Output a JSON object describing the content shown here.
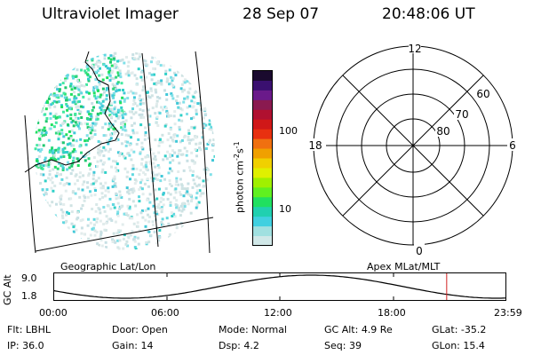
{
  "header": {
    "instrument": "Ultraviolet Imager",
    "date": "28 Sep 07",
    "time": "20:48:06 UT"
  },
  "colorbar": {
    "unit": "photon cm",
    "unit_exp1": "-2",
    "unit_mid": "s",
    "unit_exp2": "-1",
    "ticks": [
      "100",
      "10"
    ],
    "colors": [
      "#1a0a2e",
      "#3a1070",
      "#6a1a8a",
      "#8a1a50",
      "#b01030",
      "#d01818",
      "#e83010",
      "#f07010",
      "#f0a000",
      "#f0d000",
      "#e0f000",
      "#a0f000",
      "#60f020",
      "#20e060",
      "#20d0b0",
      "#40d0e0",
      "#a0e0e0",
      "#d0e8e8"
    ]
  },
  "polar": {
    "labels_mlt": [
      "12",
      "18",
      "6",
      "0"
    ],
    "labels_lat": [
      "60",
      "70",
      "80"
    ]
  },
  "map_labels": {
    "geo": "Geographic Lat/Lon",
    "apex": "Apex MLat/MLT"
  },
  "timeline": {
    "ylabel": "GC Alt",
    "y_ticks": [
      "9.0",
      "1.8"
    ],
    "x_ticks": [
      "00:00",
      "06:00",
      "12:00",
      "18:00",
      "23:59"
    ],
    "current_time_fraction": 0.87
  },
  "info": {
    "flt_label": "Flt:",
    "flt_value": "LBHL",
    "door_label": "Door:",
    "door_value": "Open",
    "mode_label": "Mode:",
    "mode_value": "Normal",
    "gcalt_label": "GC Alt:",
    "gcalt_value": "4.9 Re",
    "glat_label": "GLat:",
    "glat_value": "-35.2",
    "ip_label": "IP:",
    "ip_value": "36.0",
    "gain_label": "Gain:",
    "gain_value": "14",
    "dsp_label": "Dsp:",
    "dsp_value": "4.2",
    "seq_label": "Seq:",
    "seq_value": "39",
    "glon_label": "GLon:",
    "glon_value": "15.4"
  }
}
